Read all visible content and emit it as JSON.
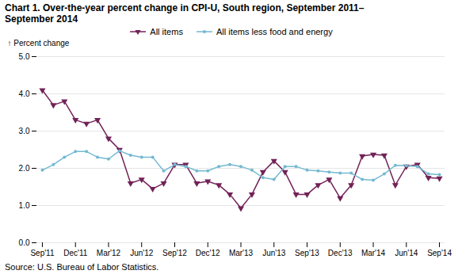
{
  "chart_data": {
    "type": "line",
    "title": "Chart 1. Over-the-year percent change in CPI-U, South region, September 2011–\nSeptember 2014",
    "y_label": "Percent change",
    "source": "Source: U.S. Bureau of Labor Statistics.",
    "categories": [
      "Sep'11",
      null,
      null,
      "Dec'11",
      null,
      null,
      "Mar'12",
      null,
      null,
      "Jun'12",
      null,
      null,
      "Sep'12",
      null,
      null,
      "Dec'12",
      null,
      null,
      "Mar'13",
      null,
      null,
      "Jun'13",
      null,
      null,
      "Sep'13",
      null,
      null,
      "Dec'13",
      null,
      null,
      "Mar'14",
      null,
      null,
      "Jun'14",
      null,
      null,
      "Sep'14"
    ],
    "series": [
      {
        "name": "All items",
        "color": "#722257",
        "marker": "triangle-down",
        "values": [
          4.1,
          3.7,
          3.8,
          3.3,
          3.2,
          3.3,
          2.8,
          2.5,
          1.6,
          1.7,
          1.45,
          1.6,
          2.1,
          2.1,
          1.6,
          1.65,
          1.55,
          1.3,
          0.93,
          1.3,
          1.9,
          2.2,
          1.9,
          1.3,
          1.3,
          1.55,
          1.7,
          1.2,
          1.55,
          2.33,
          2.37,
          2.35,
          1.55,
          2.05,
          2.1,
          1.75,
          1.73
        ]
      },
      {
        "name": "All items less food and energy",
        "color": "#74b9d2",
        "marker": "circle",
        "values": [
          1.95,
          2.1,
          2.3,
          2.45,
          2.45,
          2.3,
          2.25,
          2.47,
          2.35,
          2.3,
          2.3,
          1.93,
          2.1,
          2.05,
          1.93,
          1.93,
          2.05,
          2.1,
          2.05,
          1.95,
          1.75,
          1.7,
          2.05,
          2.05,
          1.95,
          1.93,
          1.9,
          1.87,
          1.87,
          1.7,
          1.68,
          1.85,
          2.08,
          2.07,
          2.05,
          1.85,
          1.83
        ]
      }
    ],
    "ylim": [
      0.0,
      5.0
    ],
    "yticks": [
      {
        "value": 0.0,
        "label": "0.0"
      },
      {
        "value": 1.0,
        "label": "1.0"
      },
      {
        "value": 2.0,
        "label": "2.0"
      },
      {
        "value": 3.0,
        "label": "3.0"
      },
      {
        "value": 4.0,
        "label": "4.0"
      },
      {
        "value": 5.0,
        "label": "5.0"
      }
    ],
    "grid": true,
    "legend": "top"
  }
}
